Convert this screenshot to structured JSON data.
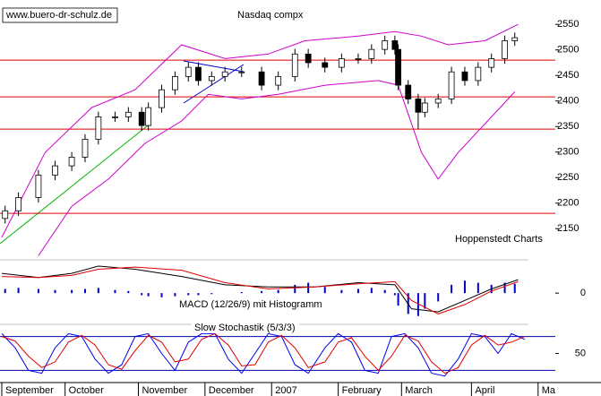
{
  "chart_data": {
    "type": "candlestick",
    "title": "Nasdaq compx",
    "source": "www.buero-dr-schulz.de",
    "credit": "Hoppenstedt Charts",
    "x": [
      1,
      5,
      11,
      16,
      21,
      25,
      29,
      34,
      38,
      42,
      44,
      48,
      52,
      56,
      59,
      63,
      67,
      72,
      78,
      83,
      88,
      92,
      97,
      102,
      107,
      111,
      115,
      118,
      119,
      122,
      125,
      127,
      131,
      135,
      139,
      143,
      147,
      151,
      154
    ],
    "open": [
      2170,
      2185,
      2211,
      2255,
      2273,
      2290,
      2325,
      2369,
      2369,
      2378,
      2352,
      2387,
      2422,
      2448,
      2466,
      2440,
      2448,
      2457,
      2457,
      2431,
      2448,
      2492,
      2475,
      2466,
      2483,
      2483,
      2501,
      2518,
      2501,
      2431,
      2404,
      2378,
      2396,
      2404,
      2457,
      2440,
      2466,
      2483,
      2518
    ],
    "high": [
      2195,
      2221,
      2265,
      2283,
      2300,
      2335,
      2379,
      2379,
      2388,
      2388,
      2397,
      2432,
      2458,
      2476,
      2476,
      2458,
      2467,
      2467,
      2467,
      2458,
      2502,
      2502,
      2485,
      2493,
      2493,
      2511,
      2528,
      2528,
      2511,
      2441,
      2414,
      2406,
      2414,
      2467,
      2467,
      2476,
      2493,
      2528,
      2534
    ],
    "low": [
      2160,
      2175,
      2201,
      2245,
      2263,
      2280,
      2315,
      2359,
      2359,
      2342,
      2342,
      2377,
      2412,
      2438,
      2430,
      2430,
      2438,
      2447,
      2421,
      2421,
      2438,
      2465,
      2456,
      2456,
      2473,
      2473,
      2491,
      2491,
      2421,
      2394,
      2345,
      2368,
      2386,
      2394,
      2430,
      2430,
      2456,
      2473,
      2508
    ],
    "close": [
      2185,
      2211,
      2255,
      2273,
      2290,
      2325,
      2369,
      2369,
      2378,
      2352,
      2387,
      2422,
      2448,
      2466,
      2440,
      2448,
      2457,
      2457,
      2431,
      2448,
      2492,
      2475,
      2466,
      2483,
      2483,
      2501,
      2518,
      2501,
      2431,
      2404,
      2378,
      2396,
      2404,
      2457,
      2440,
      2466,
      2483,
      2518,
      2524
    ],
    "xlim": [
      0,
      178
    ],
    "xticks": [
      {
        "value": 0,
        "label": "September"
      },
      {
        "value": 19,
        "label": "October"
      },
      {
        "value": 41,
        "label": "November"
      },
      {
        "value": 61,
        "label": "December"
      },
      {
        "value": 81,
        "label": "2007"
      },
      {
        "value": 101,
        "label": "February"
      },
      {
        "value": 120,
        "label": "March"
      },
      {
        "value": 141,
        "label": "April"
      },
      {
        "value": 161,
        "label": "Ma"
      }
    ],
    "ylim": [
      2089,
      2589
    ],
    "yticks": [
      2150,
      2200,
      2250,
      2300,
      2350,
      2400,
      2450,
      2500,
      2550
    ],
    "hlines": [
      2480,
      2408,
      2345,
      2180
    ],
    "hline_color": "#e00000",
    "band_color": "#cc00cc",
    "upper_band": {
      "x": [
        0,
        13,
        27,
        40,
        54,
        67,
        80,
        91,
        107,
        118,
        126,
        134,
        145,
        155
      ],
      "values": [
        2133,
        2299,
        2387,
        2422,
        2510,
        2483,
        2492,
        2518,
        2527,
        2536,
        2527,
        2510,
        2518,
        2550
      ]
    },
    "lower_band": {
      "x": [
        11,
        21,
        32,
        43,
        54,
        62,
        72,
        83,
        97,
        113,
        119,
        126,
        131,
        137,
        147,
        154
      ],
      "values": [
        2097,
        2194,
        2247,
        2317,
        2361,
        2413,
        2404,
        2413,
        2431,
        2440,
        2431,
        2299,
        2247,
        2299,
        2369,
        2418
      ]
    },
    "macd": {
      "label": "MACD (12/26/9) mit Histogramm",
      "ylim": [
        -30,
        32
      ],
      "yticks": [
        0
      ],
      "x": [
        0,
        11,
        21,
        29,
        40,
        54,
        67,
        80,
        94,
        107,
        118,
        123,
        131,
        139,
        147,
        155
      ],
      "macd": [
        19,
        15,
        19,
        26,
        23,
        16,
        8,
        6,
        6,
        10,
        8,
        -15,
        -18,
        -7,
        4,
        13
      ],
      "signal": [
        16,
        15,
        17,
        23,
        25,
        22,
        10,
        4,
        6,
        9,
        11,
        -7,
        -20,
        -11,
        2,
        11
      ],
      "histogram": [
        4,
        5,
        4,
        3,
        3,
        4,
        5,
        3,
        2,
        -2,
        -3,
        -4,
        -3,
        -2,
        -2,
        -1,
        0,
        1,
        2,
        3,
        8,
        10,
        6,
        3,
        4,
        5,
        3,
        -2,
        -12,
        -20,
        -22,
        -15,
        -8,
        8,
        12,
        10,
        8,
        10,
        9
      ],
      "macd_color": "#000000",
      "signal_color": "#e00000",
      "histogram_color": "#0000cc"
    },
    "stochastic": {
      "label": "Slow Stochastik (5/3/3)",
      "ylim": [
        0,
        100
      ],
      "yticks": [
        50
      ],
      "levels": [
        80,
        20
      ],
      "x": [
        0,
        4,
        8,
        12,
        16,
        20,
        24,
        28,
        32,
        36,
        40,
        44,
        48,
        52,
        56,
        60,
        64,
        68,
        72,
        76,
        80,
        84,
        88,
        92,
        97,
        101,
        105,
        109,
        113,
        117,
        121,
        125,
        129,
        133,
        137,
        141,
        145,
        149,
        153,
        157
      ],
      "k": [
        85,
        60,
        20,
        15,
        60,
        85,
        80,
        40,
        15,
        30,
        80,
        85,
        50,
        20,
        70,
        85,
        85,
        40,
        15,
        50,
        85,
        80,
        30,
        15,
        60,
        85,
        70,
        20,
        15,
        80,
        85,
        60,
        15,
        10,
        40,
        85,
        80,
        50,
        85,
        75
      ],
      "d": [
        80,
        72,
        45,
        25,
        35,
        70,
        82,
        65,
        30,
        22,
        55,
        82,
        70,
        35,
        40,
        75,
        85,
        65,
        28,
        30,
        70,
        82,
        60,
        25,
        35,
        70,
        78,
        45,
        20,
        45,
        82,
        72,
        35,
        15,
        25,
        65,
        82,
        65,
        70,
        80
      ],
      "k_color": "#0000ee",
      "d_color": "#e00000",
      "level_color": "#0000aa"
    }
  }
}
